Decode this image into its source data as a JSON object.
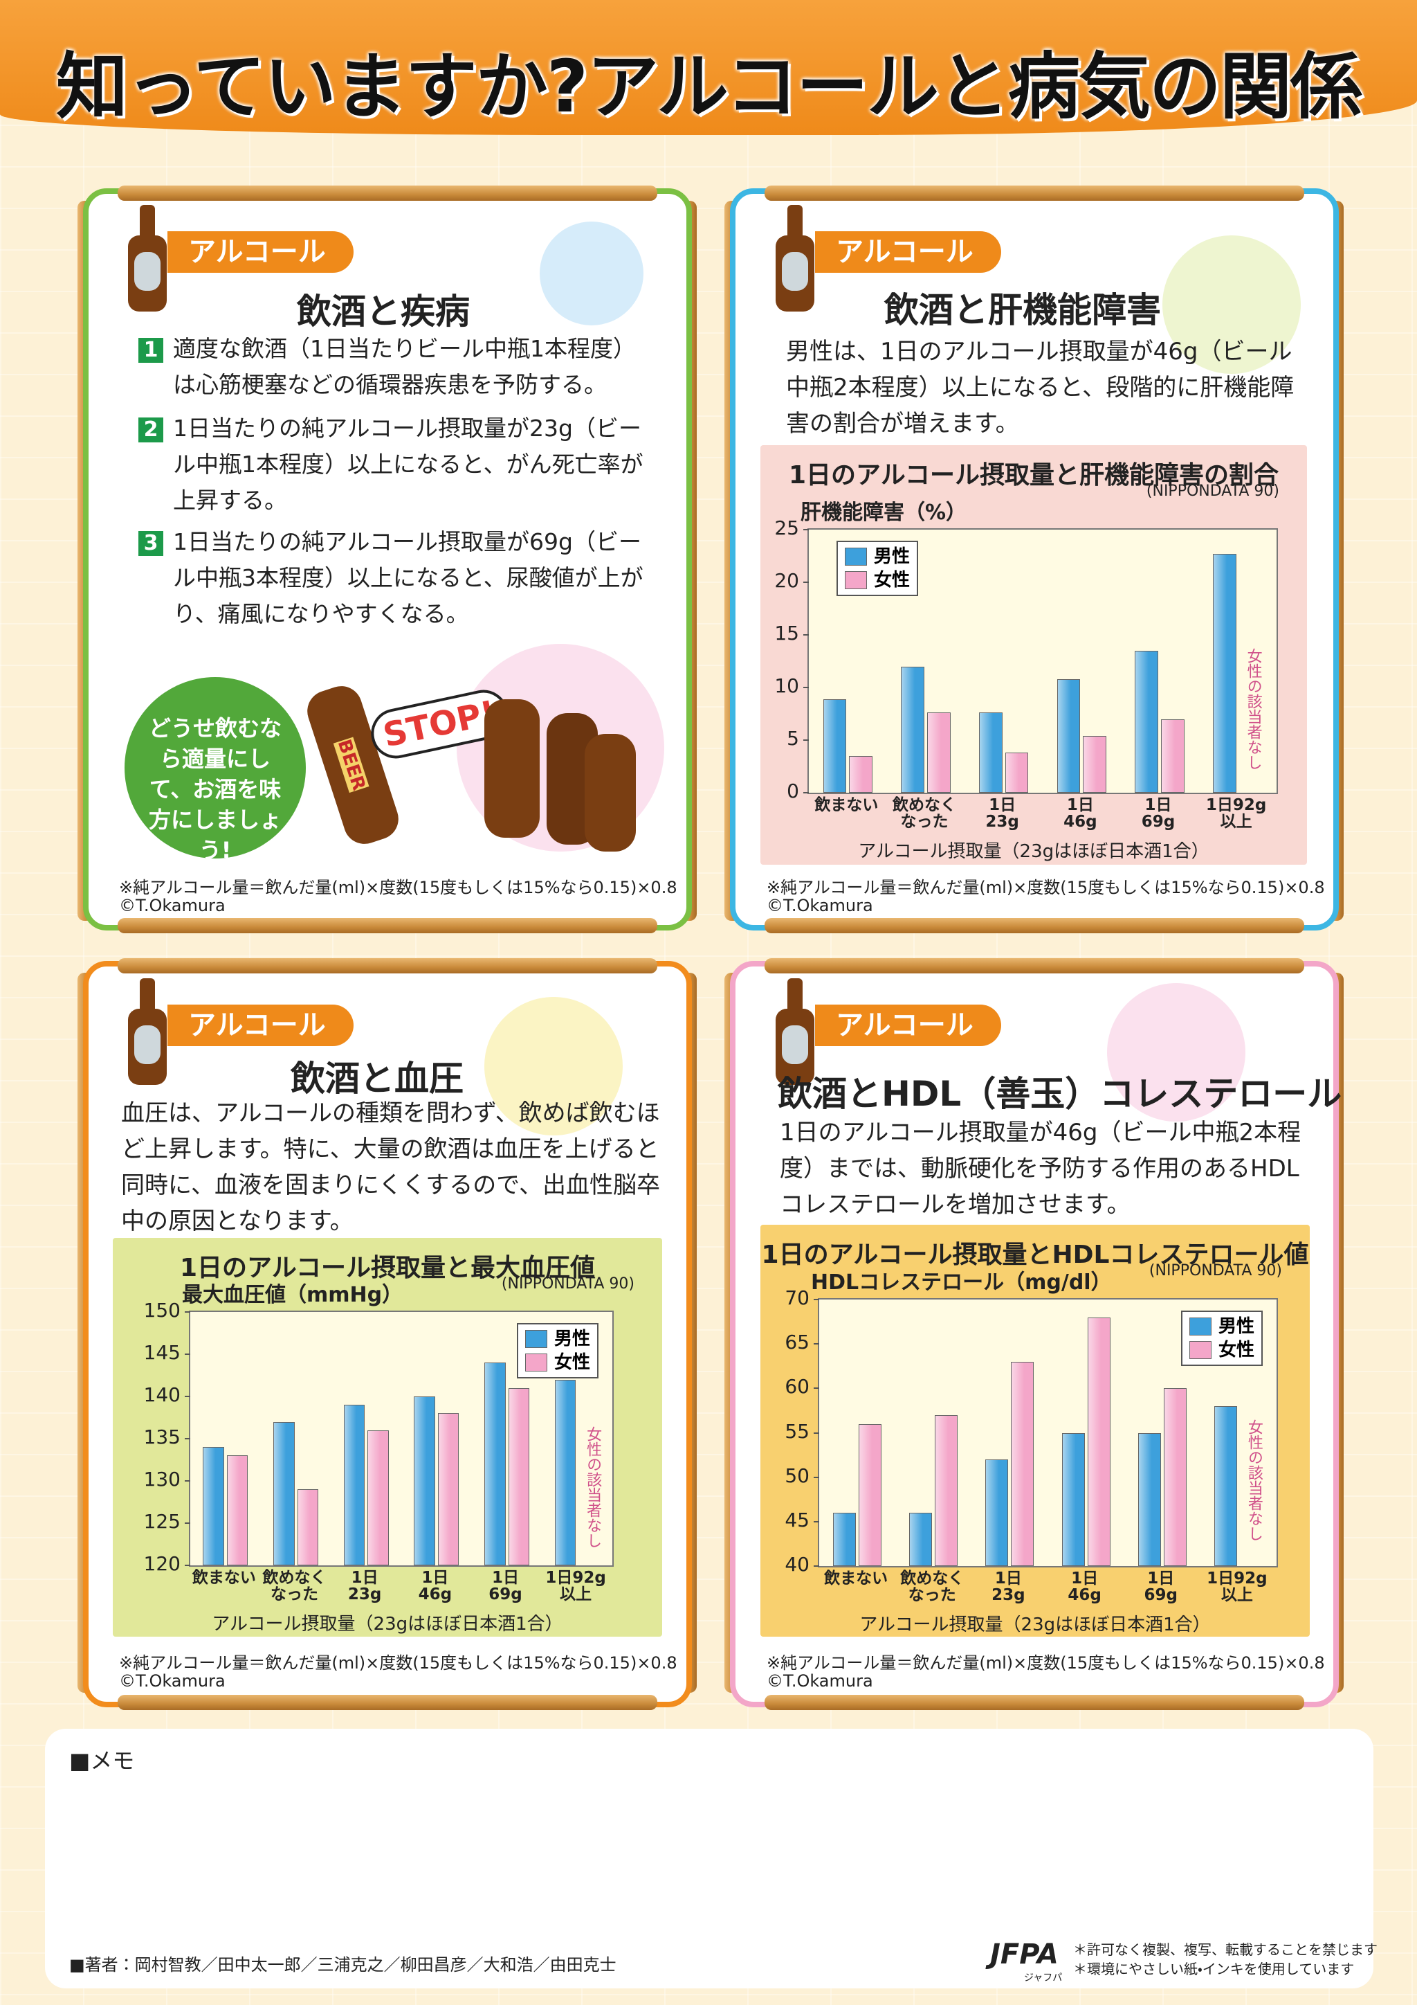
{
  "title": "知っていますか?アルコールと病気の関係",
  "panels": [
    {
      "tag": "アルコール",
      "heading": "飲酒と疾病",
      "items": [
        {
          "num": "1",
          "text": "適度な飲酒（1日当たりビール中瓶1本程度）は心筋梗塞などの循環器疾患を予防する。"
        },
        {
          "num": "2",
          "text": "1日当たりの純アルコール摂取量が23g（ビール中瓶1本程度）以上になると、がん死亡率が上昇する。"
        },
        {
          "num": "3",
          "text": "1日当たりの純アルコール摂取量が69g（ビール中瓶3本程度）以上になると、尿酸値が上がり、痛風になりやすくなる。"
        }
      ],
      "bubble": "どうせ飲むなら適量にして、お酒を味方にしましょう!",
      "stop": "STOP!",
      "beer": "BEER",
      "note": "※純アルコール量＝飲んだ量(ml)×度数(15度もしくは15%なら0.15)×0.8",
      "credit": "©T.Okamura"
    },
    {
      "tag": "アルコール",
      "heading": "飲酒と肝機能障害",
      "body": "男性は、1日のアルコール摂取量が46g（ビール中瓶2本程度）以上になると、段階的に肝機能障害の割合が増えます。",
      "note": "※純アルコール量＝飲んだ量(ml)×度数(15度もしくは15%なら0.15)×0.8",
      "credit": "©T.Okamura"
    },
    {
      "tag": "アルコール",
      "heading": "飲酒と血圧",
      "body": "血圧は、アルコールの種類を問わず、飲めば飲むほど上昇します。特に、大量の飲酒は血圧を上げると同時に、血液を固まりにくくするので、出血性脳卒中の原因となります。",
      "note": "※純アルコール量＝飲んだ量(ml)×度数(15度もしくは15%なら0.15)×0.8",
      "credit": "©T.Okamura"
    },
    {
      "tag": "アルコール",
      "heading": "飲酒とHDL（善玉）コレステロール",
      "body": "1日のアルコール摂取量が46g（ビール中瓶2本程度）までは、動脈硬化を予防する作用のあるHDLコレステロールを増加させます。",
      "note": "※純アルコール量＝飲んだ量(ml)×度数(15度もしくは15%なら0.15)×0.8",
      "credit": "©T.Okamura"
    }
  ],
  "chart_data": [
    {
      "type": "bar",
      "title": "1日のアルコール摂取量と肝機能障害の割合",
      "source": "(NIPPONDATA 90)",
      "y_label": "肝機能障害（%）",
      "x_label": "アルコール摂取量（23gはほぼ日本酒1合）",
      "categories": [
        "飲まない",
        "飲めなく\nなった",
        "1日\n23g",
        "1日\n46g",
        "1日\n69g",
        "1日92g\n以上"
      ],
      "series": [
        {
          "name": "男性",
          "color": "#3da0dc",
          "values": [
            8.9,
            12.0,
            7.6,
            10.8,
            13.5,
            22.7
          ]
        },
        {
          "name": "女性",
          "color": "#f4a6c9",
          "values": [
            3.5,
            7.6,
            3.8,
            5.4,
            7.0,
            null
          ]
        }
      ],
      "ylim": [
        0,
        25
      ],
      "yticks": [
        0,
        5,
        10,
        15,
        20,
        25
      ],
      "legend": "upper left",
      "annotation": "女性の該当者なし"
    },
    {
      "type": "bar",
      "title": "1日のアルコール摂取量と最大血圧値",
      "source": "(NIPPONDATA 90)",
      "y_label": "最大血圧値（mmHg）",
      "x_label": "アルコール摂取量（23gはほぼ日本酒1合）",
      "categories": [
        "飲まない",
        "飲めなく\nなった",
        "1日\n23g",
        "1日\n46g",
        "1日\n69g",
        "1日92g\n以上"
      ],
      "series": [
        {
          "name": "男性",
          "color": "#3da0dc",
          "values": [
            134,
            137,
            139,
            140,
            144,
            142
          ]
        },
        {
          "name": "女性",
          "color": "#f4a6c9",
          "values": [
            133,
            129,
            136,
            138,
            141,
            null
          ]
        }
      ],
      "ylim": [
        120,
        150
      ],
      "yticks": [
        120,
        125,
        130,
        135,
        140,
        145,
        150
      ],
      "legend": "upper right",
      "annotation": "女性の該当者なし"
    },
    {
      "type": "bar",
      "title": "1日のアルコール摂取量とHDLコレステロール値",
      "source": "(NIPPONDATA 90)",
      "y_label": "HDLコレステロール（mg/dl）",
      "x_label": "アルコール摂取量（23gはほぼ日本酒1合）",
      "categories": [
        "飲まない",
        "飲めなく\nなった",
        "1日\n23g",
        "1日\n46g",
        "1日\n69g",
        "1日92g\n以上"
      ],
      "series": [
        {
          "name": "男性",
          "color": "#3da0dc",
          "values": [
            46,
            46,
            52,
            55,
            55,
            58
          ]
        },
        {
          "name": "女性",
          "color": "#f4a6c9",
          "values": [
            56,
            57,
            63,
            68,
            60,
            null
          ]
        }
      ],
      "ylim": [
        40,
        70
      ],
      "yticks": [
        40,
        45,
        50,
        55,
        60,
        65,
        70
      ],
      "legend": "upper right",
      "annotation": "女性の該当者なし"
    }
  ],
  "memo": "■メモ",
  "footer": {
    "authors": "■著者：岡村智教／田中太一郎／三浦克之／柳田昌彦／大和浩／由田克士",
    "logo": "JFPA",
    "logo_sub": "ジャフパ",
    "notes": [
      "＊許可なく複製、複写、転載することを禁じます",
      "＊環境にやさしい紙・インキを使用しています"
    ]
  }
}
